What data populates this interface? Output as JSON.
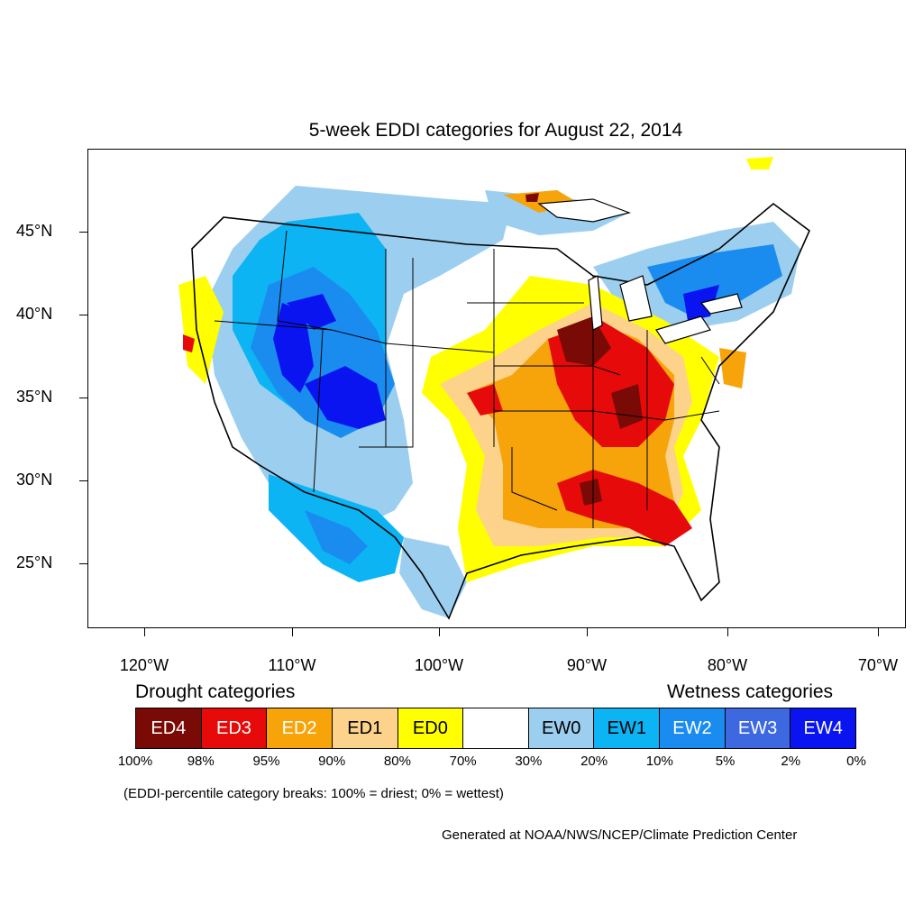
{
  "title": "5-week EDDI categories for August 22, 2014",
  "axes": {
    "lat_labels": [
      "45°N",
      "40°N",
      "35°N",
      "30°N",
      "25°N"
    ],
    "lon_labels": [
      "120°W",
      "110°W",
      "100°W",
      "90°W",
      "80°W",
      "70°W"
    ]
  },
  "legend": {
    "drought_heading": "Drought categories",
    "wetness_heading": "Wetness categories",
    "categories": [
      {
        "label": "ED4",
        "color": "#7a0a05",
        "text_color": "#ffffff"
      },
      {
        "label": "ED3",
        "color": "#e60a0a",
        "text_color": "#ffffff"
      },
      {
        "label": "ED2",
        "color": "#f7a30a",
        "text_color": "#ffffff"
      },
      {
        "label": "ED1",
        "color": "#fdd28a",
        "text_color": "#000000"
      },
      {
        "label": "ED0",
        "color": "#ffff00",
        "text_color": "#000000"
      },
      {
        "label": "",
        "color": "#ffffff",
        "text_color": "#000000"
      },
      {
        "label": "EW0",
        "color": "#9ccfef",
        "text_color": "#000000"
      },
      {
        "label": "EW1",
        "color": "#0cb4f4",
        "text_color": "#000000"
      },
      {
        "label": "EW2",
        "color": "#1a8cf0",
        "text_color": "#ffffff"
      },
      {
        "label": "EW3",
        "color": "#3d68e0",
        "text_color": "#ffffff"
      },
      {
        "label": "EW4",
        "color": "#0a14f0",
        "text_color": "#ffffff"
      }
    ],
    "percentiles": [
      "100%",
      "98%",
      "95%",
      "90%",
      "80%",
      "70%",
      "30%",
      "20%",
      "10%",
      "5%",
      "2%",
      "0%"
    ]
  },
  "note": "(EDDI-percentile category breaks: 100% = driest; 0% = wettest)",
  "credit": "Generated at NOAA/NWS/NCEP/Climate Prediction Center"
}
